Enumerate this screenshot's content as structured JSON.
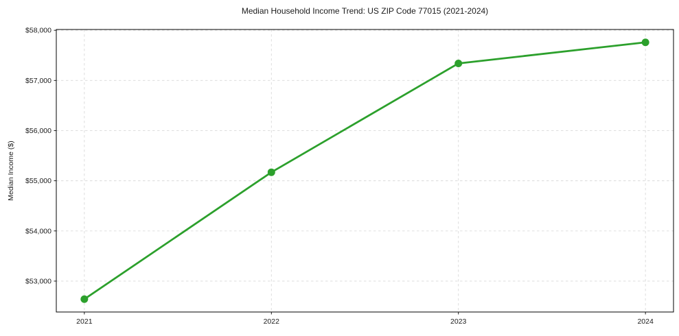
{
  "figure": {
    "background": "#ffffff"
  },
  "chart_data": {
    "type": "line",
    "title": "Median Household Income Trend: US ZIP Code 77015 (2021-2024)",
    "xlabel": "",
    "ylabel": "Median Income ($)",
    "x": [
      2021,
      2022,
      2023,
      2024
    ],
    "series": [
      {
        "name": "Median Household Income",
        "values": [
          52640,
          55170,
          57340,
          57760
        ],
        "color": "#2ca02c",
        "marker": "circle",
        "marker_radius": 5.5,
        "line_width": 2.75
      }
    ],
    "x_tick_labels": [
      "2021",
      "2022",
      "2023",
      "2024"
    ],
    "y_ticks": [
      53000,
      54000,
      55000,
      56000,
      57000,
      58000
    ],
    "y_tick_labels": [
      "$53,000",
      "$54,000",
      "$55,000",
      "$56,000",
      "$57,000",
      "$58,000"
    ],
    "xlim": [
      2020.85,
      2024.15
    ],
    "ylim": [
      52384,
      58016
    ],
    "grid": true,
    "grid_style": "dashed",
    "legend_position": "none"
  },
  "style": {
    "grid_color": "#d9d9d9",
    "spine_color": "#000000",
    "tick_color": "#000000",
    "text_color": "#1a1a1a"
  }
}
